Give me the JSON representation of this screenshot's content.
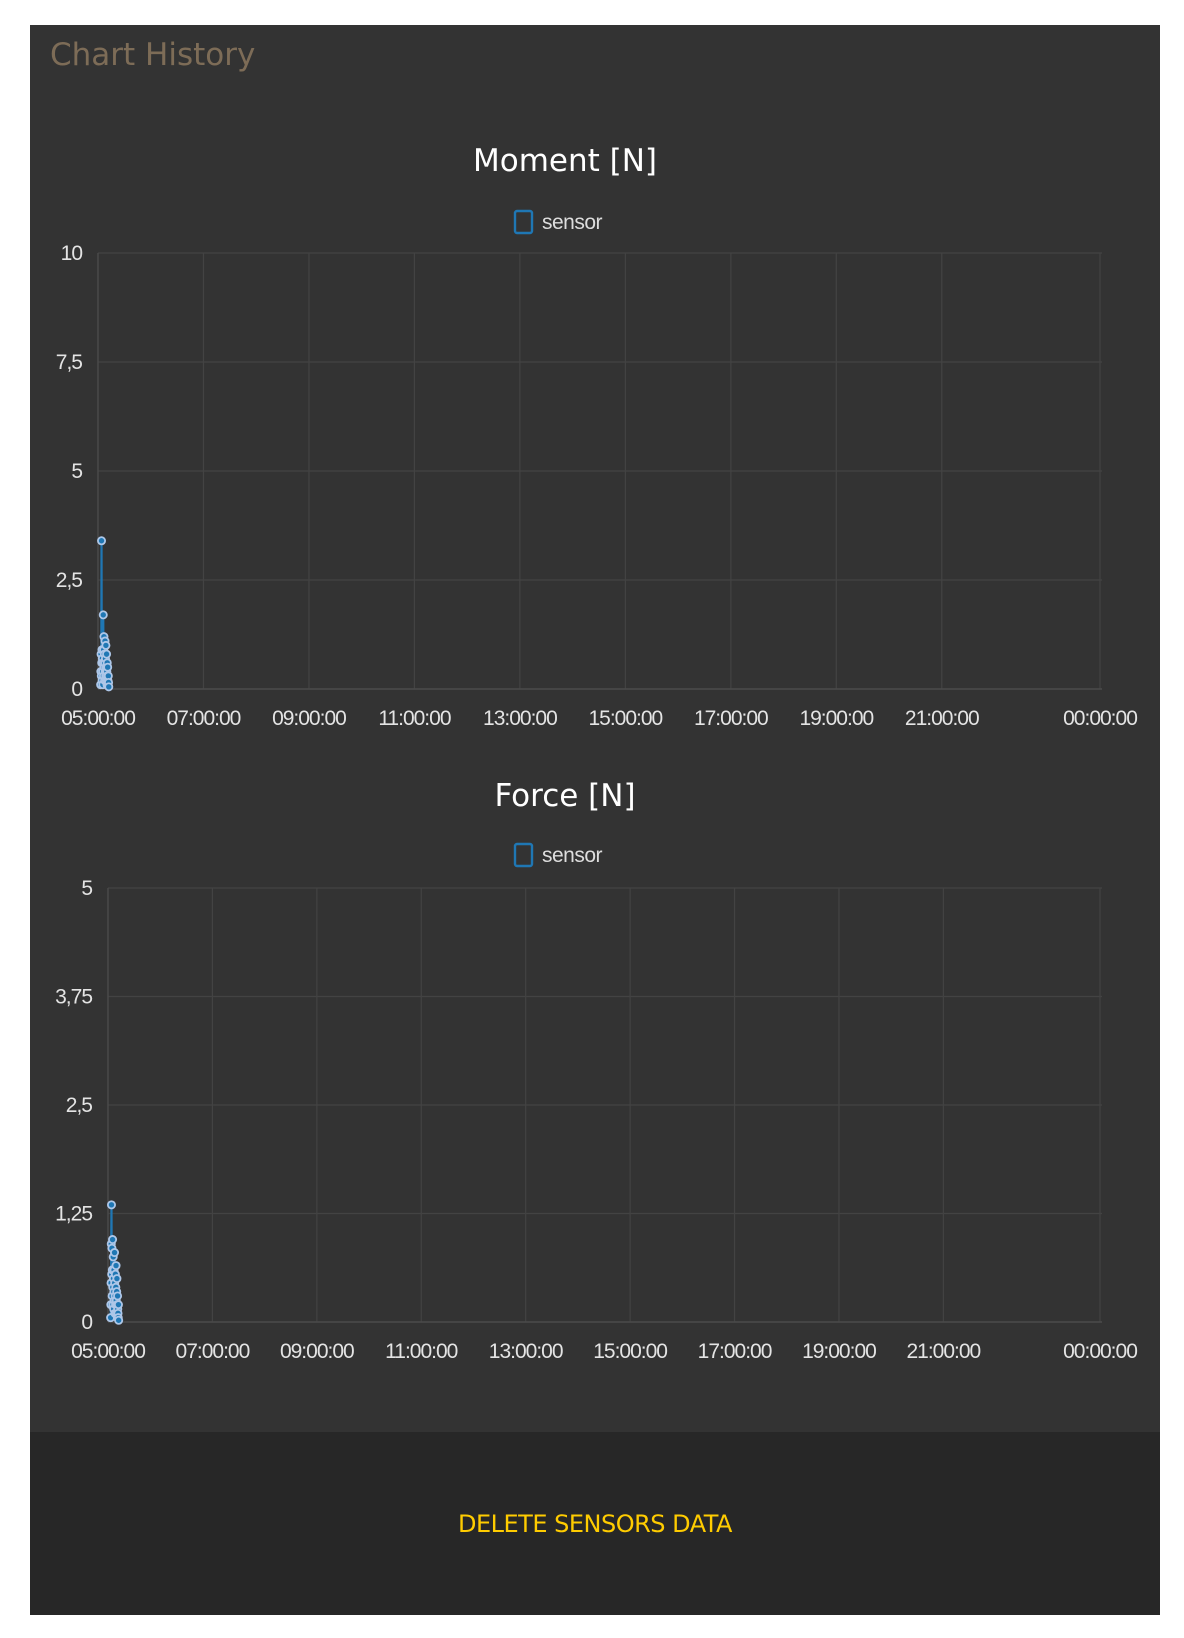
{
  "panel": {
    "title": "Chart History",
    "footer": {
      "delete_label": "DELETE SENSORS DATA"
    }
  },
  "colors": {
    "panel_background": "#333333",
    "footer_background": "#272727",
    "title_color": "#7d6c57",
    "series_color": "#1f77b4",
    "button_text": "#ffcc00"
  },
  "chart_data": [
    {
      "type": "line",
      "title": "Moment [N]",
      "legend": {
        "position": "top-center",
        "entries": [
          "sensor"
        ]
      },
      "grid": true,
      "ylim": [
        0,
        10
      ],
      "y_ticks": [
        "0",
        "2,5",
        "5",
        "7,5",
        "10"
      ],
      "xlim": [
        "05:00:00",
        "00:00:00"
      ],
      "x_ticks": [
        "05:00:00",
        "07:00:00",
        "09:00:00",
        "11:00:00",
        "13:00:00",
        "15:00:00",
        "17:00:00",
        "19:00:00",
        "21:00:00",
        "00:00:00"
      ],
      "series": [
        {
          "name": "sensor",
          "color": "#1f77b4",
          "x": [
            "05:03:00",
            "05:03:15",
            "05:03:30",
            "05:03:45",
            "05:04:00",
            "05:04:15",
            "05:04:30",
            "05:04:45",
            "05:05:00",
            "05:05:15",
            "05:05:30",
            "05:05:45",
            "05:06:00",
            "05:06:15",
            "05:06:30",
            "05:06:45",
            "05:07:00",
            "05:07:15",
            "05:07:30",
            "05:07:45",
            "05:08:00",
            "05:08:15",
            "05:08:30",
            "05:08:45",
            "05:09:00",
            "05:09:15",
            "05:09:30",
            "05:09:45",
            "05:10:00",
            "05:10:15",
            "05:10:30",
            "05:10:45",
            "05:11:00",
            "05:11:15",
            "05:11:30",
            "05:11:45",
            "05:12:00",
            "05:12:15"
          ],
          "values": [
            0.1,
            0.4,
            0.8,
            0.3,
            3.4,
            0.6,
            0.9,
            0.2,
            0.7,
            0.4,
            0.1,
            0.6,
            1.7,
            0.3,
            0.9,
            1.2,
            0.5,
            0.8,
            0.2,
            0.6,
            1.1,
            0.4,
            0.7,
            0.3,
            1.0,
            0.5,
            0.2,
            0.8,
            0.4,
            0.1,
            0.6,
            0.3,
            0.5,
            0.2,
            0.1,
            0.3,
            0.15,
            0.05
          ]
        }
      ]
    },
    {
      "type": "line",
      "title": "Force [N]",
      "legend": {
        "position": "top-center",
        "entries": [
          "sensor"
        ]
      },
      "grid": true,
      "ylim": [
        0,
        5
      ],
      "y_ticks": [
        "0",
        "1,25",
        "2,5",
        "3,75",
        "5"
      ],
      "xlim": [
        "05:00:00",
        "00:00:00"
      ],
      "x_ticks": [
        "05:00:00",
        "07:00:00",
        "09:00:00",
        "11:00:00",
        "13:00:00",
        "15:00:00",
        "17:00:00",
        "19:00:00",
        "21:00:00",
        "00:00:00"
      ],
      "series": [
        {
          "name": "sensor",
          "color": "#1f77b4",
          "x": [
            "05:03:00",
            "05:03:15",
            "05:03:30",
            "05:03:45",
            "05:04:00",
            "05:04:15",
            "05:04:30",
            "05:04:45",
            "05:05:00",
            "05:05:15",
            "05:05:30",
            "05:05:45",
            "05:06:00",
            "05:06:15",
            "05:06:30",
            "05:06:45",
            "05:07:00",
            "05:07:15",
            "05:07:30",
            "05:07:45",
            "05:08:00",
            "05:08:15",
            "05:08:30",
            "05:08:45",
            "05:09:00",
            "05:09:15",
            "05:09:30",
            "05:09:45",
            "05:10:00",
            "05:10:15",
            "05:10:30",
            "05:10:45",
            "05:11:00",
            "05:11:15",
            "05:11:30",
            "05:11:45",
            "05:12:00",
            "05:12:15"
          ],
          "values": [
            0.05,
            0.2,
            0.45,
            0.9,
            1.35,
            0.55,
            0.85,
            0.3,
            0.6,
            0.95,
            0.4,
            0.2,
            0.75,
            0.5,
            0.15,
            0.35,
            0.6,
            0.25,
            0.8,
            0.45,
            0.1,
            0.3,
            0.55,
            0.2,
            0.4,
            0.65,
            0.25,
            0.1,
            0.35,
            0.5,
            0.2,
            0.05,
            0.3,
            0.15,
            0.1,
            0.05,
            0.2,
            0.02
          ]
        }
      ]
    }
  ]
}
